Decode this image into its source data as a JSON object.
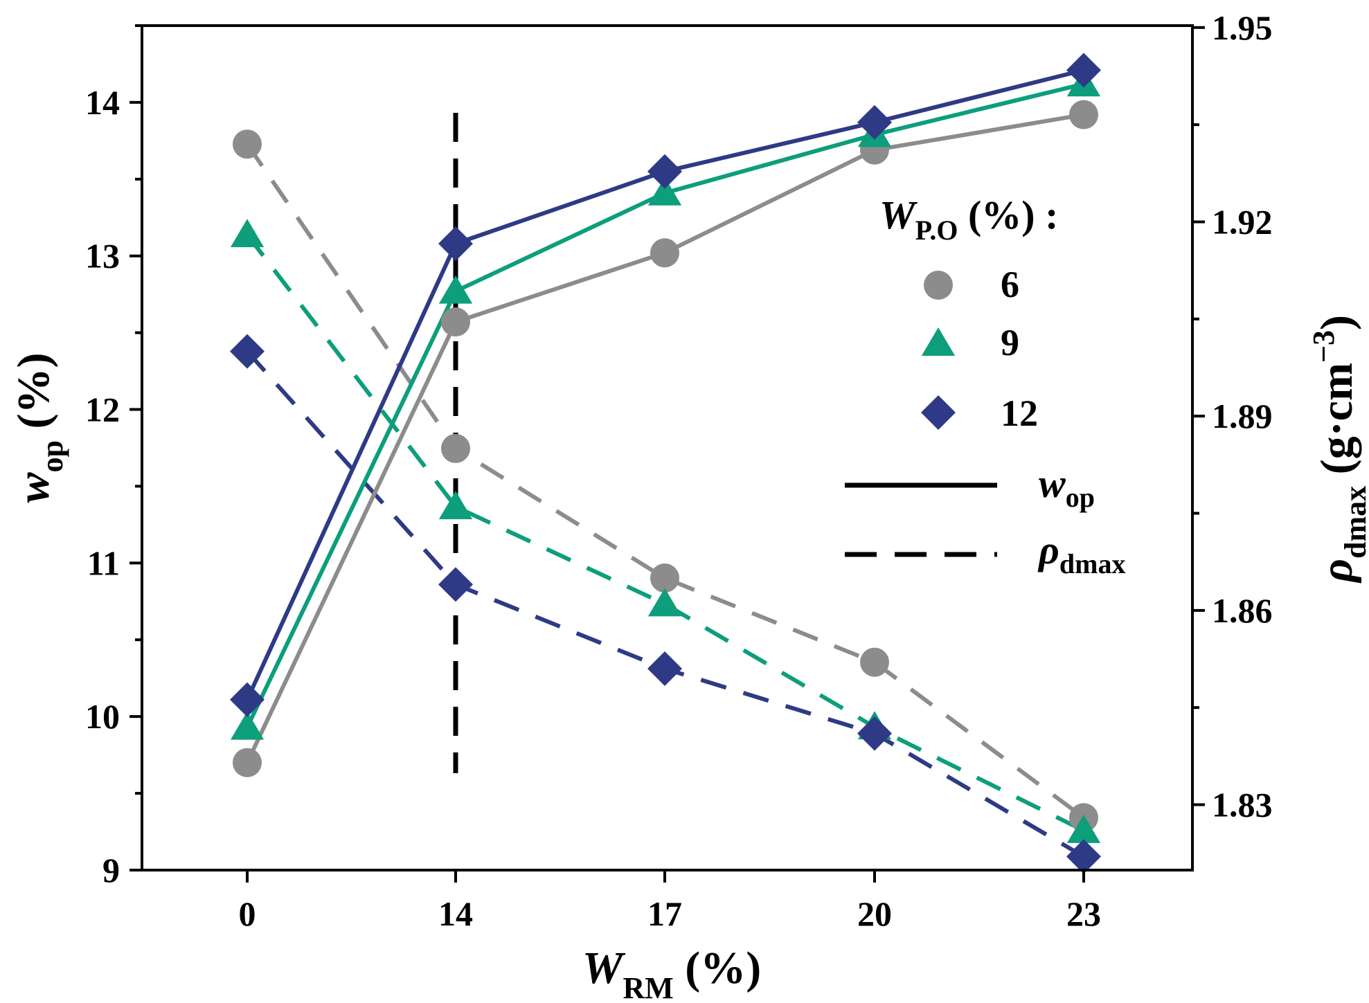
{
  "chart_data": {
    "type": "line",
    "categories": [
      "0",
      "14",
      "17",
      "20",
      "23"
    ],
    "xlabel": {
      "main": "W",
      "sub": "RM",
      "rest": " (%)"
    },
    "y_left": {
      "label": {
        "main": "w",
        "sub": "op",
        "rest": " (%)"
      },
      "lim": [
        9,
        14.5
      ],
      "ticks": [
        9,
        10,
        11,
        12,
        13,
        14
      ],
      "tick_labels": [
        "9",
        "10",
        "11",
        "12",
        "13",
        "14"
      ]
    },
    "y_right": {
      "label": {
        "main": "ρ",
        "sub": "dmax",
        "rest": " (g·cm",
        "sup": "−3",
        "close": ")"
      },
      "lim": [
        1.8199,
        1.9503
      ],
      "ticks": [
        1.83,
        1.86,
        1.89,
        1.92,
        1.95
      ],
      "tick_labels": [
        "1.83",
        "1.86",
        "1.89",
        "1.92",
        "1.95"
      ]
    },
    "reference_line": {
      "x_category": "14",
      "style": "dashed",
      "color": "#000000"
    },
    "series": [
      {
        "name": "6",
        "measure": "w_op",
        "axis": "left",
        "marker": "circle",
        "color": "#8c8c8c",
        "line": "solid",
        "values": [
          9.7,
          12.57,
          13.02,
          13.69,
          13.92
        ]
      },
      {
        "name": "9",
        "measure": "w_op",
        "axis": "left",
        "marker": "triangle",
        "color": "#0d9e7c",
        "line": "solid",
        "values": [
          9.93,
          12.77,
          13.41,
          13.79,
          14.12
        ]
      },
      {
        "name": "12",
        "measure": "w_op",
        "axis": "left",
        "marker": "diamond",
        "color": "#2e3a86",
        "line": "solid",
        "values": [
          10.11,
          13.08,
          13.55,
          13.87,
          14.21
        ]
      },
      {
        "name": "6",
        "measure": "rho_dmax",
        "axis": "right",
        "marker": "circle",
        "color": "#8c8c8c",
        "line": "dashed",
        "values": [
          1.932,
          1.885,
          1.865,
          1.852,
          1.828
        ]
      },
      {
        "name": "9",
        "measure": "rho_dmax",
        "axis": "right",
        "marker": "triangle",
        "color": "#0d9e7c",
        "line": "dashed",
        "values": [
          1.918,
          1.876,
          1.861,
          1.842,
          1.826
        ]
      },
      {
        "name": "12",
        "measure": "rho_dmax",
        "axis": "right",
        "marker": "diamond",
        "color": "#2e3a86",
        "line": "dashed",
        "values": [
          1.9,
          1.864,
          1.851,
          1.841,
          1.822
        ]
      }
    ],
    "legend": {
      "position": "right-center",
      "title": {
        "main": "W",
        "sub": "P.O",
        "rest": " (%) :"
      },
      "markers": [
        {
          "label": "6",
          "marker": "circle",
          "color": "#8c8c8c"
        },
        {
          "label": "9",
          "marker": "triangle",
          "color": "#0d9e7c"
        },
        {
          "label": "12",
          "marker": "diamond",
          "color": "#2e3a86"
        }
      ],
      "lines": [
        {
          "style": "solid",
          "label": {
            "main": "w",
            "sub": "op"
          }
        },
        {
          "style": "dashed",
          "label": {
            "main": "ρ",
            "sub": "dmax"
          }
        }
      ]
    }
  }
}
